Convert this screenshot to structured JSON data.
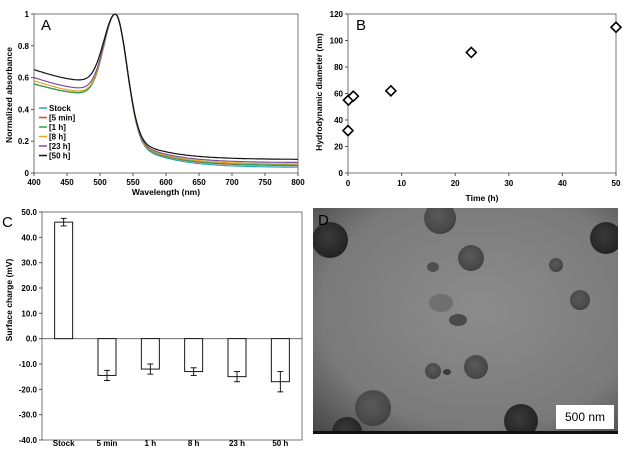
{
  "panels": {
    "a": "A",
    "b": "B",
    "c": "C",
    "d": "D"
  },
  "chart_data": [
    {
      "type": "line",
      "xlabel": "Wavelength (nm)",
      "ylabel": "Normalized absorbance",
      "xlim": [
        400,
        800
      ],
      "ylim": [
        0,
        1
      ],
      "xticks": [
        "400",
        "450",
        "500",
        "550",
        "600",
        "650",
        "700",
        "750",
        "800"
      ],
      "yticks": [
        "0",
        "0.2",
        "0.4",
        "0.6",
        "0.8",
        "1"
      ],
      "legend_position": "left",
      "peak_x": 523,
      "series": [
        {
          "name": "Stock",
          "color": "#2aa3c4",
          "base": 0.56,
          "min": 0.5,
          "tail": 0.035
        },
        {
          "name": "[5 min]",
          "color": "#d24a3c",
          "base": 0.56,
          "min": 0.5,
          "tail": 0.045
        },
        {
          "name": "[1 h]",
          "color": "#33a050",
          "base": 0.56,
          "min": 0.5,
          "tail": 0.048
        },
        {
          "name": "[8 h]",
          "color": "#e0a820",
          "base": 0.58,
          "min": 0.51,
          "tail": 0.055
        },
        {
          "name": "[23 h]",
          "color": "#7b4f9a",
          "base": 0.6,
          "min": 0.53,
          "tail": 0.065
        },
        {
          "name": "[50 h]",
          "color": "#111111",
          "base": 0.65,
          "min": 0.58,
          "tail": 0.085
        }
      ]
    },
    {
      "type": "scatter",
      "xlabel": "Time (h)",
      "ylabel": "Hydrodynamic diameter (nm)",
      "xlim": [
        0,
        50
      ],
      "ylim": [
        0,
        120
      ],
      "xticks": [
        "0",
        "10",
        "20",
        "30",
        "40",
        "50"
      ],
      "yticks": [
        "0",
        "20",
        "40",
        "60",
        "80",
        "100",
        "120"
      ],
      "marker": "diamond",
      "points": [
        {
          "x": 0,
          "y": 32
        },
        {
          "x": 0.08,
          "y": 55
        },
        {
          "x": 1,
          "y": 58
        },
        {
          "x": 8,
          "y": 62
        },
        {
          "x": 23,
          "y": 91
        },
        {
          "x": 50,
          "y": 110
        }
      ]
    },
    {
      "type": "bar",
      "ylabel": "Surface charge (mV)",
      "ylim": [
        -40,
        50
      ],
      "yticks": [
        "-40.0",
        "-30.0",
        "-20.0",
        "-10.0",
        "0.0",
        "10.0",
        "20.0",
        "30.0",
        "40.0",
        "50.0"
      ],
      "categories": [
        "Stock",
        "5 min",
        "1 h",
        "8 h",
        "23 h",
        "50 h"
      ],
      "values": [
        46,
        -14.5,
        -12,
        -13,
        -15,
        -17
      ],
      "errors": [
        1.5,
        2,
        2,
        1.5,
        2,
        4
      ]
    }
  ],
  "micrograph": {
    "scale_bar": "500 nm"
  }
}
